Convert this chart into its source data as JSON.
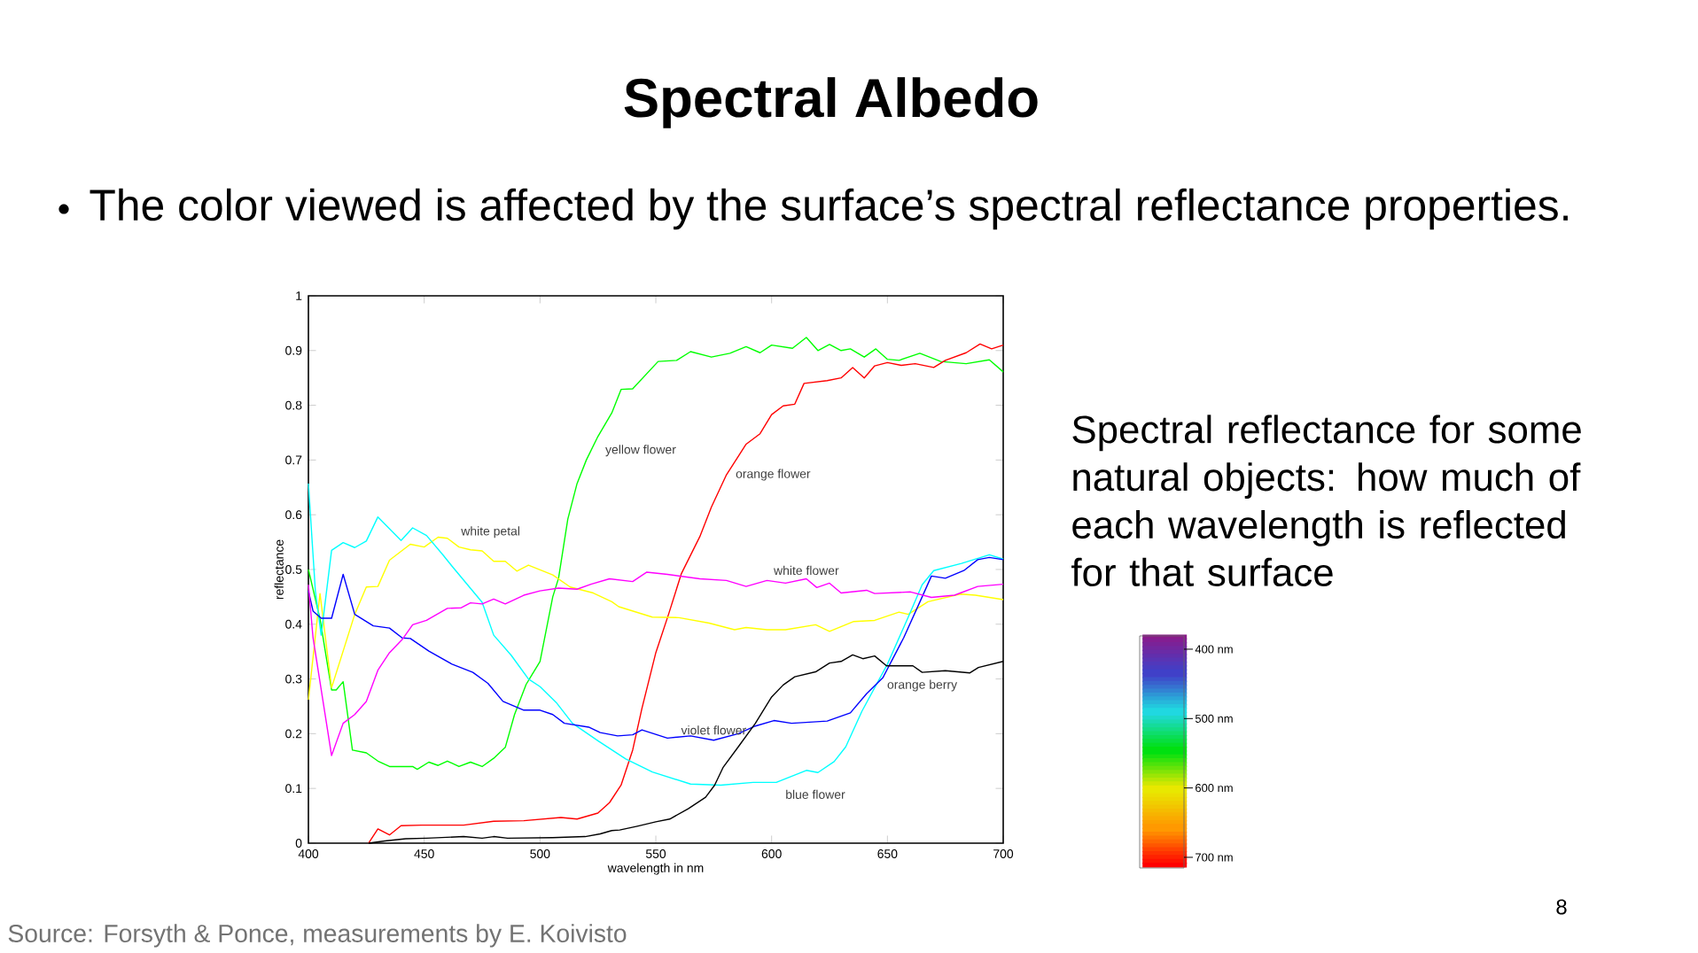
{
  "chart_data": {
    "type": "line",
    "title": "Spectral Albedo",
    "xlabel": "wavelength in nm",
    "ylabel": "reflectance",
    "xlim": [
      400,
      700
    ],
    "ylim": [
      0,
      1
    ],
    "xticks": [
      400,
      450,
      500,
      550,
      600,
      650,
      700
    ],
    "yticks": [
      0,
      0.1,
      0.2,
      0.3,
      0.4,
      0.5,
      0.6,
      0.7,
      0.8,
      0.9,
      1
    ],
    "series": [
      {
        "name": "yellow flower",
        "color": "#00ff00",
        "x": [
          400,
          405,
          410,
          412,
          415,
          419,
          425,
          430,
          435,
          445,
          447,
          452,
          456,
          460,
          465,
          470,
          475,
          480,
          485,
          489,
          494,
          500,
          505.5,
          508,
          512,
          516,
          520,
          525,
          531,
          535,
          540,
          551,
          559,
          565,
          574,
          582,
          589,
          595,
          600,
          609,
          615,
          620,
          625,
          630,
          634,
          640,
          645,
          650,
          655,
          664,
          673,
          684,
          694,
          700
        ],
        "values": [
          0.5,
          0.41,
          0.28,
          0.28,
          0.295,
          0.17,
          0.165,
          0.15,
          0.14,
          0.14,
          0.135,
          0.148,
          0.142,
          0.15,
          0.14,
          0.148,
          0.14,
          0.155,
          0.175,
          0.235,
          0.29,
          0.332,
          0.45,
          0.484,
          0.592,
          0.657,
          0.7,
          0.743,
          0.786,
          0.829,
          0.83,
          0.88,
          0.882,
          0.898,
          0.888,
          0.895,
          0.907,
          0.896,
          0.91,
          0.904,
          0.924,
          0.9,
          0.911,
          0.9,
          0.903,
          0.888,
          0.903,
          0.884,
          0.882,
          0.895,
          0.88,
          0.876,
          0.883,
          0.861
        ]
      },
      {
        "name": "orange flower",
        "color": "#ff0000",
        "x": [
          426,
          430,
          435,
          440,
          449,
          467,
          480,
          493,
          509,
          516,
          525,
          530,
          535,
          540,
          544,
          550,
          555.5,
          561,
          569,
          574,
          580.5,
          589,
          595,
          600,
          605,
          610,
          614,
          624,
          630,
          635,
          640,
          644.5,
          650,
          656,
          662,
          670,
          675,
          684,
          690,
          695,
          700
        ],
        "values": [
          0,
          0.026,
          0.015,
          0.032,
          0.033,
          0.033,
          0.04,
          0.041,
          0.047,
          0.044,
          0.055,
          0.074,
          0.106,
          0.17,
          0.246,
          0.348,
          0.418,
          0.492,
          0.56,
          0.614,
          0.673,
          0.729,
          0.748,
          0.783,
          0.799,
          0.802,
          0.84,
          0.845,
          0.85,
          0.869,
          0.85,
          0.872,
          0.878,
          0.873,
          0.876,
          0.869,
          0.882,
          0.896,
          0.912,
          0.903,
          0.91
        ]
      },
      {
        "name": "white petal",
        "color": "#ffff00",
        "x": [
          400,
          405,
          410,
          420,
          425,
          430,
          435,
          444,
          450,
          456,
          460,
          465,
          470,
          475,
          480,
          485,
          490,
          495,
          505.5,
          513,
          523,
          531,
          534,
          548.5,
          560,
          573,
          584,
          589,
          598,
          606,
          619,
          625,
          635.5,
          644.5,
          655,
          659,
          667.5,
          681.5,
          688,
          700
        ],
        "values": [
          0.262,
          0.456,
          0.284,
          0.418,
          0.468,
          0.469,
          0.517,
          0.546,
          0.541,
          0.559,
          0.557,
          0.541,
          0.536,
          0.534,
          0.515,
          0.515,
          0.497,
          0.508,
          0.49,
          0.468,
          0.457,
          0.441,
          0.432,
          0.413,
          0.412,
          0.402,
          0.39,
          0.394,
          0.39,
          0.39,
          0.399,
          0.387,
          0.405,
          0.407,
          0.422,
          0.418,
          0.441,
          0.455,
          0.453,
          0.445
        ]
      },
      {
        "name": "blue flower",
        "color": "#00ffff",
        "x": [
          400,
          403,
          405.5,
          410,
          415,
          420,
          425,
          430,
          440,
          445,
          451,
          458,
          462,
          475,
          480,
          487.6,
          495,
          500,
          507,
          514,
          525,
          537,
          548.5,
          565,
          578,
          592,
          602,
          615,
          620,
          627,
          632,
          639,
          650,
          659,
          665,
          670,
          682,
          688,
          694,
          700
        ],
        "values": [
          0.657,
          0.461,
          0.38,
          0.535,
          0.549,
          0.54,
          0.552,
          0.596,
          0.553,
          0.576,
          0.562,
          0.527,
          0.506,
          0.44,
          0.38,
          0.343,
          0.3,
          0.286,
          0.257,
          0.219,
          0.187,
          0.154,
          0.13,
          0.108,
          0.106,
          0.111,
          0.111,
          0.133,
          0.129,
          0.149,
          0.176,
          0.241,
          0.327,
          0.413,
          0.472,
          0.498,
          0.511,
          0.519,
          0.527,
          0.519
        ]
      },
      {
        "name": "violet flower",
        "color": "#0000ff",
        "x": [
          400,
          402,
          405.5,
          410,
          415,
          420,
          428,
          435,
          440.5,
          444,
          452,
          462,
          471,
          477.5,
          484,
          493,
          500,
          505.5,
          510.5,
          521,
          526,
          533.5,
          540,
          544,
          555,
          565,
          575,
          585.6,
          593,
          601,
          608.6,
          624,
          634,
          641,
          648,
          657,
          665,
          669,
          675,
          683,
          689,
          694,
          700
        ],
        "values": [
          0.461,
          0.424,
          0.411,
          0.411,
          0.491,
          0.418,
          0.397,
          0.393,
          0.375,
          0.374,
          0.351,
          0.327,
          0.312,
          0.292,
          0.259,
          0.243,
          0.243,
          0.235,
          0.219,
          0.212,
          0.202,
          0.196,
          0.198,
          0.207,
          0.192,
          0.196,
          0.188,
          0.2,
          0.214,
          0.224,
          0.219,
          0.223,
          0.238,
          0.273,
          0.302,
          0.375,
          0.45,
          0.488,
          0.484,
          0.498,
          0.518,
          0.522,
          0.518
        ]
      },
      {
        "name": "white flower",
        "color": "#ff00ff",
        "x": [
          400,
          402,
          410,
          415,
          420,
          425,
          430,
          435,
          440.5,
          445,
          451,
          460,
          466,
          470,
          475,
          480,
          485,
          493,
          500,
          508,
          516,
          522,
          530,
          540,
          546,
          555,
          569,
          580.5,
          589,
          598,
          606,
          615,
          619.5,
          625,
          630,
          641,
          644.5,
          660,
          669,
          679,
          689,
          700
        ],
        "values": [
          0.472,
          0.375,
          0.16,
          0.219,
          0.235,
          0.259,
          0.316,
          0.348,
          0.372,
          0.399,
          0.407,
          0.429,
          0.43,
          0.439,
          0.437,
          0.446,
          0.437,
          0.453,
          0.461,
          0.466,
          0.464,
          0.473,
          0.483,
          0.478,
          0.495,
          0.491,
          0.483,
          0.48,
          0.469,
          0.48,
          0.475,
          0.483,
          0.467,
          0.475,
          0.457,
          0.462,
          0.456,
          0.459,
          0.449,
          0.453,
          0.469,
          0.473
        ]
      },
      {
        "name": "orange berry",
        "color": "#000000",
        "x": [
          426,
          433,
          442,
          451,
          467,
          475,
          480,
          486,
          505.5,
          519.5,
          526,
          531,
          534.4,
          542,
          550,
          556,
          564,
          571.5,
          575.4,
          579,
          585.6,
          593,
          600,
          605,
          610,
          619,
          625,
          630,
          635,
          639.4,
          644.5,
          649.6,
          661,
          665,
          675,
          685.5,
          689.3,
          700
        ],
        "values": [
          0,
          0.004,
          0.008,
          0.009,
          0.012,
          0.009,
          0.012,
          0.009,
          0.01,
          0.012,
          0.017,
          0.023,
          0.024,
          0.031,
          0.039,
          0.044,
          0.063,
          0.084,
          0.106,
          0.138,
          0.176,
          0.219,
          0.267,
          0.289,
          0.304,
          0.313,
          0.329,
          0.332,
          0.344,
          0.337,
          0.342,
          0.324,
          0.324,
          0.312,
          0.315,
          0.311,
          0.321,
          0.332
        ]
      }
    ],
    "annotations": [
      "The color viewed is affected by the surface’s spectral reflectance properties.",
      "Spectral reflectance for some natural objects: how much of each wavelength is reflected for that surface",
      "Source: Forsyth & Ponce, measurements by E. Koivisto",
      "8",
      "400 nm",
      "500 nm",
      "600 nm",
      "700 nm"
    ]
  }
}
